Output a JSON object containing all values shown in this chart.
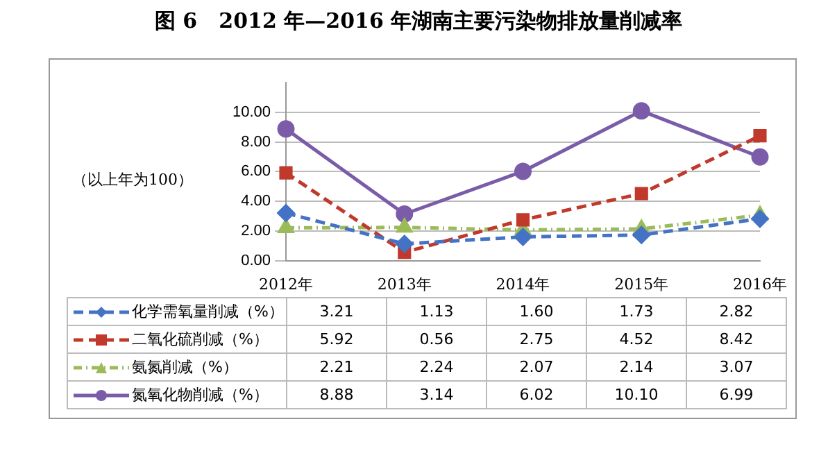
{
  "chart_data": {
    "type": "line",
    "title": "图 6   2012 年—2016 年湖南主要污染物排放量削减率",
    "ylabel": "（以上年为100）",
    "categories": [
      "2012年",
      "2013年",
      "2014年",
      "2015年",
      "2016年"
    ],
    "series": [
      {
        "name": "化学需氧量削减（%）",
        "color": "#4472c4",
        "values": [
          3.21,
          1.13,
          1.6,
          1.73,
          2.82
        ],
        "value_labels": [
          "3.21",
          "1.13",
          "1.60",
          "1.73",
          "2.82"
        ],
        "marker": "diamond",
        "line_style": "dashed"
      },
      {
        "name": "二氧化硫削减（%）",
        "color": "#c0392b",
        "values": [
          5.92,
          0.56,
          2.75,
          4.52,
          8.42
        ],
        "value_labels": [
          "5.92",
          "0.56",
          "2.75",
          "4.52",
          "8.42"
        ],
        "marker": "square",
        "line_style": "dashed"
      },
      {
        "name": "氨氮削减（%）",
        "color": "#9bbb59",
        "values": [
          2.21,
          2.24,
          2.07,
          2.14,
          3.07
        ],
        "value_labels": [
          "2.21",
          "2.24",
          "2.07",
          "2.14",
          "3.07"
        ],
        "marker": "triangle",
        "line_style": "dotted"
      },
      {
        "name": "氮氧化物削减（%）",
        "color": "#7b5ca8",
        "values": [
          8.88,
          3.14,
          6.02,
          10.1,
          6.99
        ],
        "value_labels": [
          "8.88",
          "3.14",
          "6.02",
          "10.10",
          "6.99"
        ],
        "marker": "circle",
        "line_style": "solid"
      }
    ],
    "ylim": [
      0,
      12
    ],
    "yticks": [
      {
        "value": 0,
        "label": "0.00"
      },
      {
        "value": 2,
        "label": "2.00"
      },
      {
        "value": 4,
        "label": "4.00"
      },
      {
        "value": 6,
        "label": "6.00"
      },
      {
        "value": 8,
        "label": "8.00"
      },
      {
        "value": 10,
        "label": "10.00"
      }
    ],
    "grid": "y",
    "legend": "bottom"
  }
}
